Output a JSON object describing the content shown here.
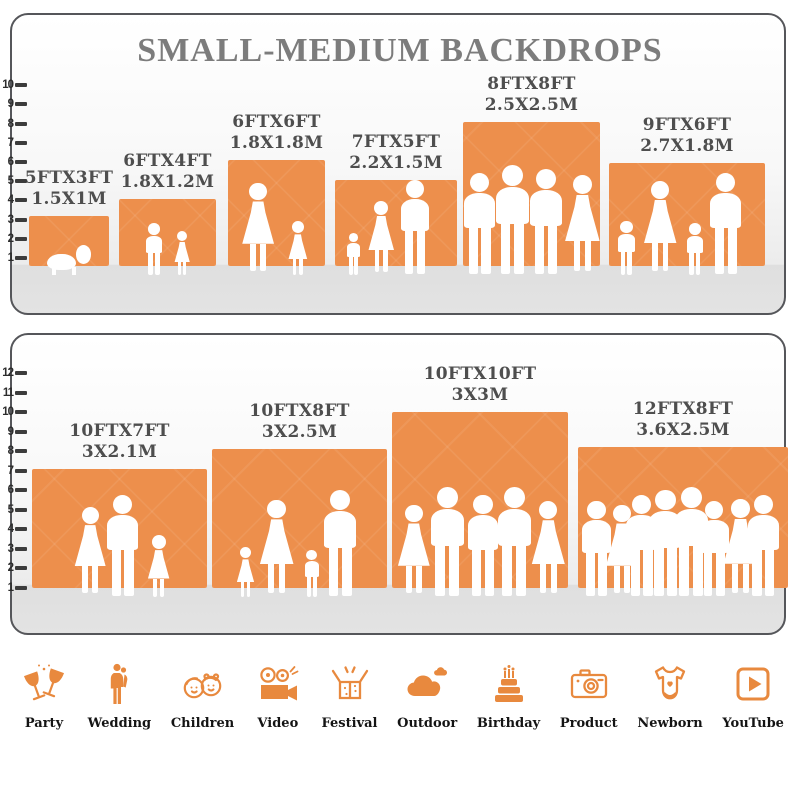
{
  "title": "SMALL-MEDIUM BACKDROPS",
  "panels": [
    {
      "name": "small-backdrops",
      "ruler_values": [
        10,
        9,
        8,
        7,
        6,
        5,
        4,
        3,
        2,
        1
      ],
      "backdrops": [
        {
          "size_ft": "5FTX3FT",
          "size_m": "1.5X1M",
          "width_ft": 5,
          "height_ft": 3,
          "figures": [
            "baby"
          ]
        },
        {
          "size_ft": "6FTX4FT",
          "size_m": "1.8X1.2M",
          "width_ft": 6,
          "height_ft": 4,
          "figures": [
            "boy",
            "girl"
          ]
        },
        {
          "size_ft": "6FTX6FT",
          "size_m": "1.8X1.8M",
          "width_ft": 6,
          "height_ft": 6,
          "figures": [
            "woman",
            "girl"
          ]
        },
        {
          "size_ft": "7FTX5FT",
          "size_m": "2.2X1.5M",
          "width_ft": 7,
          "height_ft": 5,
          "figures": [
            "child",
            "woman",
            "man"
          ]
        },
        {
          "size_ft": "8FTX8FT",
          "size_m": "2.5X2.5M",
          "width_ft": 8,
          "height_ft": 8,
          "figures": [
            "man",
            "man",
            "man",
            "woman"
          ]
        },
        {
          "size_ft": "9FTX6FT",
          "size_m": "2.7X1.8M",
          "width_ft": 9,
          "height_ft": 6,
          "figures": [
            "child",
            "woman",
            "child",
            "man"
          ]
        }
      ]
    },
    {
      "name": "medium-backdrops",
      "ruler_values": [
        12,
        11,
        10,
        9,
        8,
        7,
        6,
        5,
        4,
        3,
        2,
        1
      ],
      "backdrops": [
        {
          "size_ft": "10FTX7FT",
          "size_m": "3X2.1M",
          "width_ft": 10,
          "height_ft": 7,
          "figures": [
            "woman",
            "man",
            "girl"
          ]
        },
        {
          "size_ft": "10FTX8FT",
          "size_m": "3X2.5M",
          "width_ft": 10,
          "height_ft": 8,
          "figures": [
            "girl",
            "woman",
            "boy",
            "man"
          ]
        },
        {
          "size_ft": "10FTX10FT",
          "size_m": "3X3M",
          "width_ft": 10,
          "height_ft": 10,
          "figures": [
            "woman",
            "man",
            "man",
            "man",
            "woman"
          ]
        },
        {
          "size_ft": "12FTX8FT",
          "size_m": "3.6X2.5M",
          "width_ft": 12,
          "height_ft": 8,
          "figures": [
            "man",
            "woman",
            "man",
            "man",
            "man",
            "man",
            "woman",
            "man"
          ]
        }
      ]
    }
  ],
  "categories": [
    {
      "label": "Party",
      "icon": "party-icon"
    },
    {
      "label": "Wedding",
      "icon": "wedding-icon"
    },
    {
      "label": "Children",
      "icon": "children-icon"
    },
    {
      "label": "Video",
      "icon": "video-icon"
    },
    {
      "label": "Festival",
      "icon": "festival-icon"
    },
    {
      "label": "Outdoor",
      "icon": "outdoor-icon"
    },
    {
      "label": "Birthday",
      "icon": "birthday-icon"
    },
    {
      "label": "Product",
      "icon": "product-icon"
    },
    {
      "label": "Newborn",
      "icon": "newborn-icon"
    },
    {
      "label": "YouTube",
      "icon": "youtube-icon"
    }
  ],
  "colors": {
    "backdrop_orange": "#ED8F4C",
    "icon_orange": "#E8893E",
    "title_gray": "#7C7C7C",
    "label_gray": "#4E4E4E",
    "ruler_dark": "#3C3C3C",
    "panel_border": "#55565A",
    "floor_gray": "#E0E0E0"
  }
}
